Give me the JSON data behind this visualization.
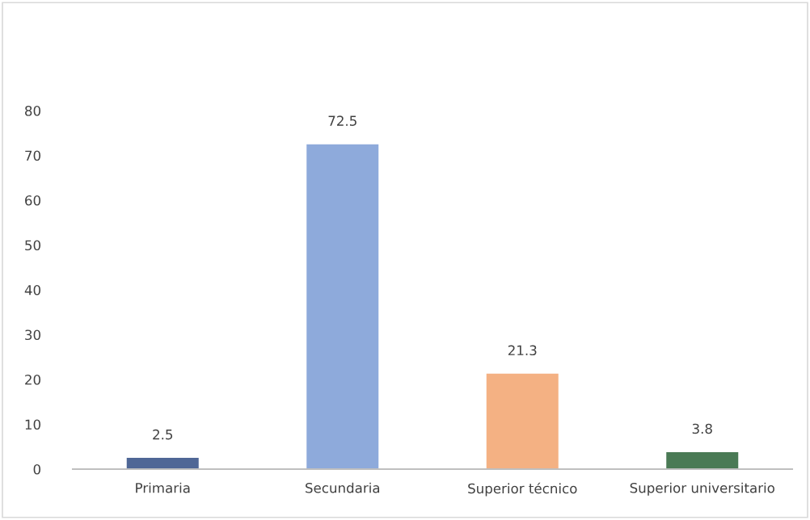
{
  "chart_data": {
    "type": "bar",
    "categories": [
      "Primaria",
      "Secundaria",
      "Superior técnico",
      "Superior universitario"
    ],
    "values": [
      2.5,
      72.5,
      21.3,
      3.8
    ],
    "colors": [
      "#4f6796",
      "#8eaadb",
      "#f4b183",
      "#4a7a55"
    ],
    "ylim": [
      0,
      80
    ],
    "yticks": [
      0,
      10,
      20,
      30,
      40,
      50,
      60,
      70,
      80
    ],
    "data_labels": true,
    "grid": false,
    "legend": false
  }
}
